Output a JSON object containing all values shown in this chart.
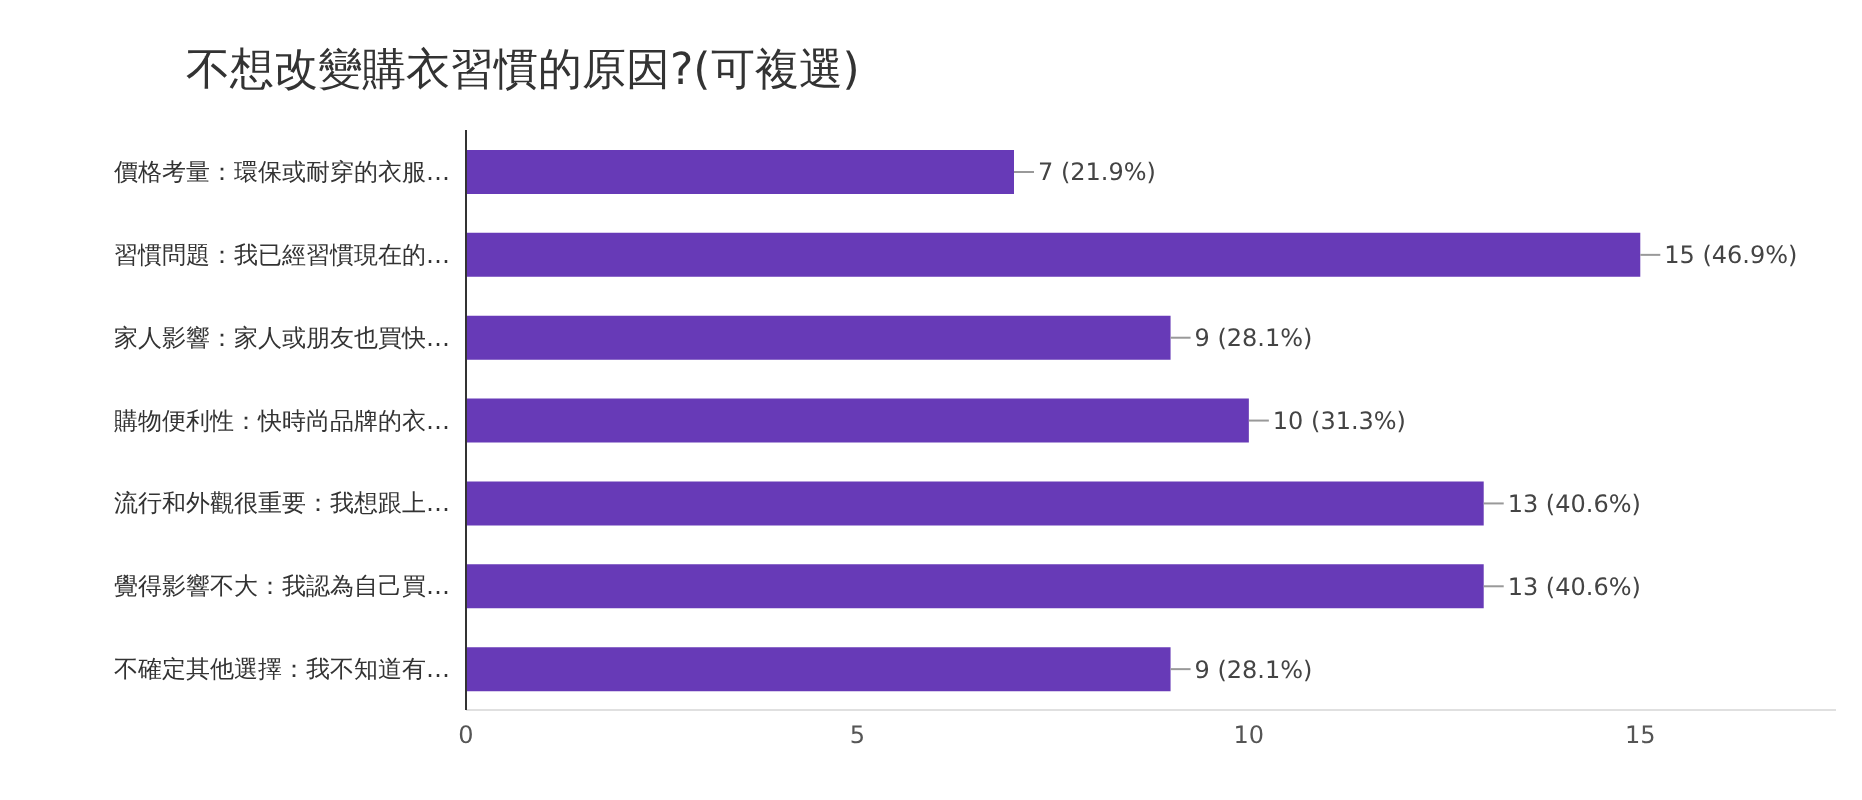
{
  "chart_data": {
    "type": "bar",
    "orientation": "horizontal",
    "title": "不想改變購衣習慣的原因?(可複選)",
    "categories": [
      "價格考量：環保或耐穿的衣服…",
      "習慣問題：我已經習慣現在的…",
      "家人影響：家人或朋友也買快…",
      "購物便利性：快時尚品牌的衣…",
      "流行和外觀很重要：我想跟上…",
      "覺得影響不大：我認為自己買…",
      "不確定其他選擇：我不知道有…"
    ],
    "values": [
      7,
      15,
      9,
      10,
      13,
      13,
      9
    ],
    "value_labels": [
      "7 (21.9%)",
      "15 (46.9%)",
      "9 (28.1%)",
      "10 (31.3%)",
      "13 (40.6%)",
      "13 (40.6%)",
      "9 (28.1%)"
    ],
    "color": "#673ab7",
    "xlim": [
      0,
      17.5
    ],
    "xticks": [
      0,
      5,
      10,
      15
    ],
    "grid": false
  }
}
